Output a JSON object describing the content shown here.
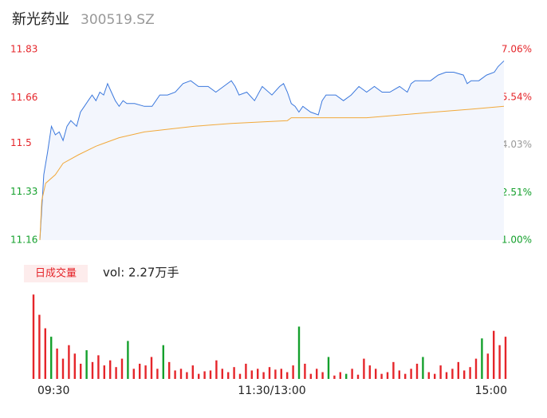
{
  "chart_data": {
    "type": "intraday",
    "title": "新光药业",
    "subtitle": "300519.SZ",
    "xlim": [
      0,
      240
    ],
    "xticks": [
      {
        "value": 0,
        "label": "09:30"
      },
      {
        "value": 120,
        "label": "11:30/13:00"
      },
      {
        "value": 240,
        "label": "15:00"
      }
    ],
    "ylim": [
      11.16,
      11.83
    ],
    "yticks": [
      11.83,
      11.66,
      11.5,
      11.33,
      11.16
    ],
    "y2lim": [
      1.0,
      7.06
    ],
    "y2ticks": [
      {
        "value": 7.06,
        "label": "7.06%"
      },
      {
        "value": 5.54,
        "label": "5.54%"
      },
      {
        "value": 4.03,
        "label": "4.03%"
      },
      {
        "value": 2.51,
        "label": "2.51%"
      },
      {
        "value": 1.0,
        "label": "1.00%"
      }
    ],
    "up_color": "#e5252a",
    "down_color": "#14a02c",
    "flat_color": "#999999",
    "series": [
      {
        "color": "#3b78dd",
        "fill": "#f3f6fd",
        "x": [
          0,
          1,
          2,
          4,
          6,
          8,
          10,
          12,
          14,
          16,
          19,
          21,
          23,
          25,
          27,
          29,
          31,
          33,
          35,
          37,
          39,
          41,
          43,
          45,
          49,
          54,
          58,
          62,
          66,
          70,
          74,
          78,
          82,
          87,
          91,
          95,
          99,
          101,
          103,
          107,
          111,
          115,
          120,
          124,
          126,
          128,
          130,
          132,
          134,
          136,
          140,
          144,
          146,
          148,
          153,
          157,
          161,
          165,
          169,
          173,
          177,
          181,
          186,
          190,
          192,
          194,
          198,
          202,
          206,
          210,
          214,
          219,
          221,
          223,
          227,
          231,
          235,
          237,
          240
        ],
        "values": [
          11.16,
          11.27,
          11.39,
          11.47,
          11.56,
          11.53,
          11.54,
          11.51,
          11.56,
          11.58,
          11.56,
          11.61,
          11.63,
          11.65,
          11.67,
          11.65,
          11.68,
          11.67,
          11.71,
          11.68,
          11.65,
          11.63,
          11.65,
          11.64,
          11.64,
          11.63,
          11.63,
          11.67,
          11.67,
          11.68,
          11.71,
          11.72,
          11.7,
          11.7,
          11.68,
          11.7,
          11.72,
          11.7,
          11.67,
          11.68,
          11.65,
          11.7,
          11.67,
          11.7,
          11.71,
          11.68,
          11.64,
          11.63,
          11.61,
          11.63,
          11.61,
          11.6,
          11.65,
          11.67,
          11.67,
          11.65,
          11.67,
          11.7,
          11.68,
          11.7,
          11.68,
          11.68,
          11.7,
          11.68,
          11.71,
          11.72,
          11.72,
          11.72,
          11.74,
          11.75,
          11.75,
          11.74,
          11.71,
          11.72,
          11.72,
          11.74,
          11.75,
          11.77,
          11.79
        ]
      },
      {
        "color": "#f2a93b",
        "x": [
          0,
          1,
          3,
          8,
          12,
          20,
          29,
          41,
          54,
          80,
          99,
          128,
          130,
          169,
          204,
          223,
          240
        ],
        "values": [
          11.16,
          11.3,
          11.36,
          11.39,
          11.43,
          11.46,
          11.49,
          11.52,
          11.54,
          11.56,
          11.57,
          11.58,
          11.59,
          11.59,
          11.61,
          11.62,
          11.63
        ]
      }
    ],
    "volume_label": "日成交量",
    "volume_text": "vol: 2.27万手",
    "volume": {
      "ylim": [
        0,
        520
      ],
      "x": [
        0,
        3,
        6,
        9,
        12,
        15,
        18,
        21,
        24,
        27,
        30,
        33,
        36,
        39,
        42,
        45,
        48,
        51,
        54,
        57,
        60,
        63,
        66,
        69,
        72,
        75,
        78,
        81,
        84,
        87,
        90,
        93,
        96,
        99,
        102,
        105,
        108,
        111,
        114,
        117,
        120,
        123,
        126,
        129,
        132,
        135,
        138,
        141,
        144,
        147,
        150,
        153,
        156,
        159,
        162,
        165,
        168,
        171,
        174,
        177,
        180,
        183,
        186,
        189,
        192,
        195,
        198,
        201,
        204,
        207,
        210,
        213,
        216,
        219,
        222,
        225,
        228,
        231,
        234,
        237,
        240
      ],
      "values": [
        500,
        380,
        300,
        250,
        180,
        120,
        200,
        150,
        90,
        170,
        100,
        140,
        80,
        110,
        70,
        120,
        225,
        60,
        90,
        80,
        130,
        60,
        200,
        100,
        50,
        60,
        40,
        80,
        30,
        45,
        50,
        110,
        60,
        40,
        70,
        30,
        90,
        50,
        60,
        40,
        70,
        55,
        60,
        40,
        80,
        310,
        90,
        30,
        60,
        40,
        130,
        20,
        40,
        30,
        60,
        25,
        120,
        80,
        60,
        30,
        40,
        100,
        50,
        30,
        60,
        90,
        130,
        40,
        30,
        80,
        40,
        60,
        100,
        50,
        70,
        120,
        240,
        150,
        285,
        200,
        250
      ],
      "up": [
        1,
        1,
        1,
        0,
        1,
        1,
        1,
        1,
        1,
        0,
        1,
        1,
        1,
        1,
        1,
        1,
        0,
        1,
        1,
        1,
        1,
        1,
        0,
        1,
        1,
        1,
        1,
        1,
        1,
        1,
        1,
        1,
        1,
        1,
        1,
        1,
        1,
        1,
        1,
        1,
        1,
        1,
        1,
        1,
        1,
        0,
        1,
        1,
        1,
        1,
        0,
        1,
        1,
        0,
        1,
        1,
        1,
        1,
        1,
        1,
        1,
        1,
        1,
        1,
        1,
        1,
        0,
        1,
        1,
        1,
        1,
        1,
        1,
        1,
        1,
        1,
        0,
        1,
        1,
        1,
        1
      ]
    }
  }
}
